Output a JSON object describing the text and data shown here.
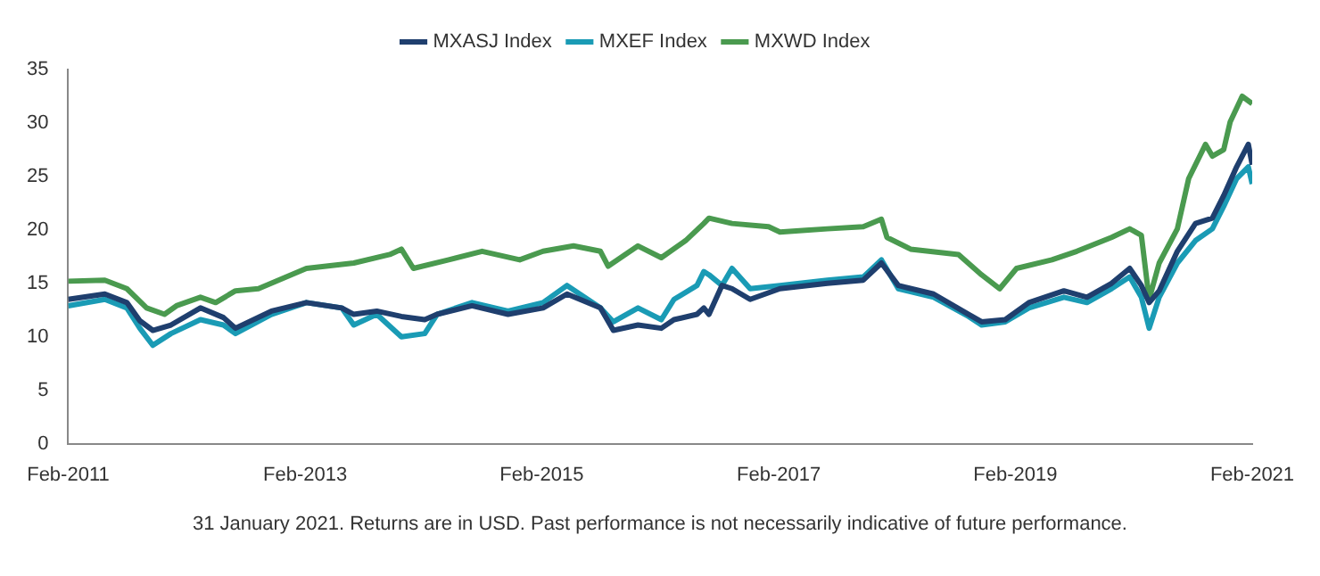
{
  "chart_data": {
    "type": "line",
    "annotations": [
      "31 January 2021. Returns are in USD. Past performance is not necessarily indicative of future performance."
    ],
    "xlim": [
      "2011-02",
      "2021-02"
    ],
    "xticks": [
      {
        "value": "2011-02",
        "label": "Feb-2011"
      },
      {
        "value": "2013-02",
        "label": "Feb-2013"
      },
      {
        "value": "2015-02",
        "label": "Feb-2015"
      },
      {
        "value": "2017-02",
        "label": "Feb-2017"
      },
      {
        "value": "2019-02",
        "label": "Feb-2019"
      },
      {
        "value": "2021-02",
        "label": "Feb-2021"
      }
    ],
    "ylim": [
      0,
      35
    ],
    "yticks": [
      0,
      5,
      10,
      15,
      20,
      25,
      30,
      35
    ],
    "grid": false,
    "legend": "top",
    "marker": "none",
    "line_style": "solid",
    "series": [
      {
        "name": "MXASJ Index",
        "color": "#1f3f6e",
        "x": [
          "2011-02-01",
          "2011-05-25",
          "2011-08-01",
          "2011-09-10",
          "2011-10-20",
          "2011-12-15",
          "2012-03-15",
          "2012-05-25",
          "2012-07-01",
          "2012-10-20",
          "2013-02-05",
          "2013-05-25",
          "2013-07-01",
          "2013-09-10",
          "2013-11-25",
          "2014-02-05",
          "2014-03-15",
          "2014-07-01",
          "2014-10-20",
          "2015-02-05",
          "2015-04-20",
          "2015-08-01",
          "2015-09-10",
          "2015-11-25",
          "2016-02-05",
          "2016-03-15",
          "2016-05-25",
          "2016-06-15",
          "2016-07-01",
          "2016-08-10",
          "2016-09-10",
          "2016-11-05",
          "2017-02-05",
          "2017-07-01",
          "2017-10-20",
          "2017-12-15",
          "2018-02-05",
          "2018-05-25",
          "2018-09-10",
          "2018-10-20",
          "2019-01-01",
          "2019-03-15",
          "2019-07-01",
          "2019-09-10",
          "2019-11-25",
          "2020-01-20",
          "2020-02-25",
          "2020-03-20",
          "2020-04-20",
          "2020-06-15",
          "2020-08-10",
          "2020-10-01",
          "2020-11-05",
          "2020-12-15",
          "2021-01-20",
          "2021-02-01"
        ],
        "values": [
          13.5,
          14.0,
          13.2,
          11.5,
          10.6,
          11.1,
          12.7,
          11.8,
          10.8,
          12.4,
          13.2,
          12.7,
          12.1,
          12.4,
          11.9,
          11.6,
          12.1,
          12.9,
          12.1,
          12.7,
          14.0,
          12.7,
          10.6,
          11.1,
          10.8,
          11.6,
          12.1,
          12.7,
          12.1,
          14.8,
          14.5,
          13.5,
          14.5,
          15.0,
          15.3,
          16.9,
          14.8,
          14.0,
          12.1,
          11.4,
          11.6,
          13.2,
          14.3,
          13.7,
          15.0,
          16.4,
          14.8,
          13.2,
          14.3,
          18.0,
          20.6,
          21.1,
          23.2,
          25.9,
          28.0,
          26.1
        ]
      },
      {
        "name": "MXEF Index",
        "color": "#1a9bb5",
        "x": [
          "2011-02-01",
          "2011-05-25",
          "2011-08-01",
          "2011-09-10",
          "2011-10-20",
          "2011-12-15",
          "2012-03-15",
          "2012-05-25",
          "2012-07-01",
          "2012-10-20",
          "2013-02-05",
          "2013-05-25",
          "2013-07-01",
          "2013-09-10",
          "2013-11-25",
          "2014-02-05",
          "2014-03-15",
          "2014-07-01",
          "2014-10-20",
          "2015-02-05",
          "2015-04-20",
          "2015-08-01",
          "2015-09-10",
          "2015-11-25",
          "2016-02-05",
          "2016-03-15",
          "2016-05-25",
          "2016-06-15",
          "2016-07-01",
          "2016-08-10",
          "2016-09-10",
          "2016-11-05",
          "2017-02-05",
          "2017-07-01",
          "2017-10-20",
          "2017-12-15",
          "2018-02-05",
          "2018-05-25",
          "2018-09-10",
          "2018-10-20",
          "2019-01-01",
          "2019-03-15",
          "2019-07-01",
          "2019-09-10",
          "2019-11-25",
          "2020-01-20",
          "2020-02-25",
          "2020-03-20",
          "2020-04-20",
          "2020-06-15",
          "2020-08-10",
          "2020-10-01",
          "2020-11-05",
          "2020-12-15",
          "2021-01-20",
          "2021-02-01"
        ],
        "values": [
          12.9,
          13.5,
          12.7,
          10.8,
          9.2,
          10.3,
          11.6,
          11.1,
          10.3,
          12.1,
          13.2,
          12.7,
          11.1,
          12.1,
          10.0,
          10.3,
          12.1,
          13.2,
          12.4,
          13.2,
          14.8,
          12.7,
          11.4,
          12.7,
          11.6,
          13.5,
          14.8,
          16.1,
          15.8,
          14.8,
          16.4,
          14.5,
          14.8,
          15.3,
          15.6,
          17.2,
          14.5,
          13.7,
          11.9,
          11.1,
          11.4,
          12.7,
          13.7,
          13.2,
          14.5,
          15.6,
          13.7,
          10.8,
          13.7,
          16.9,
          19.0,
          20.1,
          22.2,
          24.8,
          25.9,
          24.3
        ]
      },
      {
        "name": "MXWD Index",
        "color": "#4a9a4f",
        "x": [
          "2011-02-01",
          "2011-05-25",
          "2011-08-01",
          "2011-10-01",
          "2011-11-25",
          "2012-01-01",
          "2012-03-15",
          "2012-05-01",
          "2012-07-01",
          "2012-09-10",
          "2013-02-05",
          "2013-07-01",
          "2013-10-20",
          "2013-11-25",
          "2014-01-01",
          "2014-04-20",
          "2014-08-01",
          "2014-11-25",
          "2015-02-05",
          "2015-05-10",
          "2015-08-01",
          "2015-08-25",
          "2015-11-25",
          "2016-02-05",
          "2016-04-20",
          "2016-06-15",
          "2016-07-01",
          "2016-09-10",
          "2017-01-01",
          "2017-02-05",
          "2017-07-01",
          "2017-10-20",
          "2017-12-15",
          "2018-01-01",
          "2018-03-15",
          "2018-08-10",
          "2018-10-20",
          "2018-12-15",
          "2019-02-05",
          "2019-05-25",
          "2019-08-10",
          "2019-11-25",
          "2020-01-20",
          "2020-02-25",
          "2020-03-20",
          "2020-04-20",
          "2020-06-15",
          "2020-07-20",
          "2020-09-10",
          "2020-10-01",
          "2020-11-05",
          "2020-11-25",
          "2021-01-01",
          "2021-02-01"
        ],
        "values": [
          15.2,
          15.3,
          14.5,
          12.7,
          12.1,
          12.9,
          13.7,
          13.2,
          14.3,
          14.5,
          16.4,
          16.9,
          17.7,
          18.2,
          16.4,
          17.2,
          18.0,
          17.2,
          18.0,
          18.5,
          18.0,
          16.6,
          18.5,
          17.4,
          19.0,
          20.6,
          21.1,
          20.6,
          20.3,
          19.8,
          20.1,
          20.3,
          21.0,
          19.3,
          18.2,
          17.7,
          15.8,
          14.5,
          16.4,
          17.2,
          18.0,
          19.3,
          20.1,
          19.5,
          13.5,
          16.9,
          20.1,
          24.8,
          28.0,
          26.9,
          27.5,
          30.1,
          32.5,
          31.8
        ]
      }
    ]
  }
}
